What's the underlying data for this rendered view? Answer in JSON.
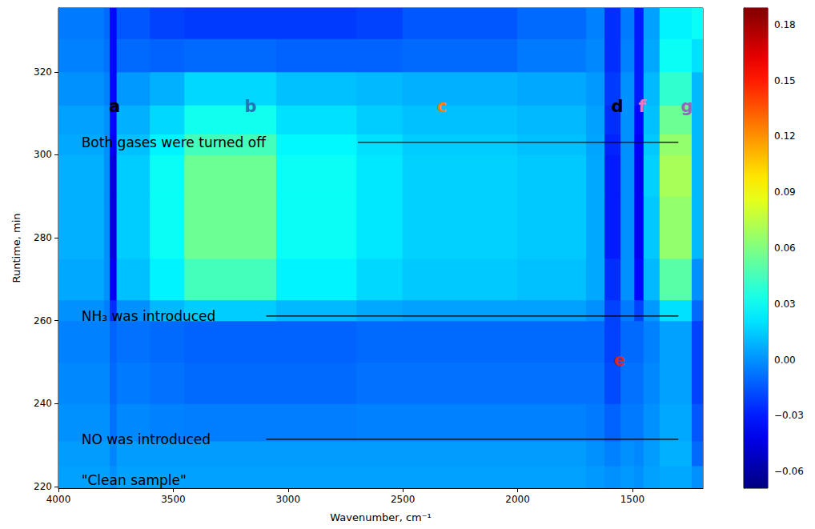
{
  "chart_data": {
    "type": "heatmap",
    "xlabel": "Wavenumber, cm⁻¹",
    "ylabel": "Runtime, min",
    "xlim": [
      4000,
      1193
    ],
    "xticks": [
      4000,
      3500,
      3000,
      2500,
      2000,
      1500
    ],
    "ylim": [
      219.6,
      335.4
    ],
    "yticks": [
      220,
      240,
      260,
      280,
      300,
      320
    ],
    "grid": false,
    "x_edges": [
      4000,
      3800,
      3775,
      3745,
      3600,
      3450,
      3050,
      2700,
      2500,
      2000,
      1700,
      1620,
      1550,
      1490,
      1450,
      1380,
      1240,
      1193
    ],
    "y_edges": [
      219.6,
      225,
      231,
      240,
      250,
      260,
      265,
      275,
      290,
      300,
      305,
      312,
      320,
      328,
      335.4
    ],
    "cells": [
      [
        0.004,
        0.004,
        0.0,
        0.004,
        0.004,
        0.004,
        0.004,
        0.004,
        0.004,
        0.004,
        0.002,
        0.0,
        0.002,
        0.0,
        0.004,
        0.006,
        0.0
      ],
      [
        0.003,
        0.003,
        -0.003,
        0.003,
        0.003,
        0.003,
        0.003,
        0.003,
        0.003,
        0.003,
        0.0,
        -0.004,
        0.0,
        -0.002,
        0.003,
        0.008,
        -0.01
      ],
      [
        0.0,
        0.0,
        -0.008,
        -0.002,
        -0.004,
        -0.005,
        -0.005,
        -0.004,
        -0.004,
        -0.004,
        -0.006,
        -0.012,
        -0.006,
        -0.006,
        0.0,
        0.006,
        -0.015
      ],
      [
        -0.002,
        -0.002,
        -0.01,
        -0.006,
        -0.008,
        -0.01,
        -0.01,
        -0.008,
        -0.008,
        -0.008,
        -0.008,
        -0.018,
        -0.008,
        -0.008,
        -0.002,
        0.004,
        -0.02
      ],
      [
        -0.004,
        -0.004,
        -0.012,
        -0.008,
        -0.01,
        -0.012,
        -0.012,
        -0.01,
        -0.01,
        -0.01,
        -0.01,
        -0.02,
        -0.01,
        -0.01,
        -0.004,
        0.004,
        -0.02
      ],
      [
        0.0,
        -0.005,
        -0.025,
        0.0,
        0.01,
        0.015,
        0.01,
        0.006,
        0.004,
        0.004,
        0.0,
        -0.02,
        -0.006,
        -0.02,
        0.002,
        0.02,
        -0.01
      ],
      [
        0.006,
        0.0,
        -0.04,
        0.012,
        0.025,
        0.045,
        0.025,
        0.018,
        0.014,
        0.012,
        0.006,
        -0.025,
        0.0,
        -0.035,
        0.01,
        0.05,
        0.0
      ],
      [
        0.008,
        0.0,
        -0.045,
        0.015,
        0.03,
        0.055,
        0.03,
        0.022,
        0.016,
        0.014,
        0.006,
        -0.03,
        0.0,
        -0.04,
        0.014,
        0.065,
        0.01
      ],
      [
        0.008,
        0.0,
        -0.045,
        0.015,
        0.03,
        0.055,
        0.03,
        0.022,
        0.016,
        0.014,
        0.006,
        -0.03,
        0.0,
        -0.04,
        0.016,
        0.07,
        0.01
      ],
      [
        0.006,
        0.0,
        -0.04,
        0.012,
        0.025,
        0.045,
        0.026,
        0.02,
        0.015,
        0.012,
        0.005,
        -0.028,
        0.0,
        -0.038,
        0.014,
        0.065,
        0.01
      ],
      [
        0.004,
        0.0,
        -0.035,
        0.008,
        0.018,
        0.032,
        0.02,
        0.015,
        0.012,
        0.01,
        0.004,
        -0.025,
        0.0,
        -0.035,
        0.012,
        0.055,
        0.01
      ],
      [
        0.0,
        -0.004,
        -0.035,
        0.002,
        0.008,
        0.018,
        0.012,
        0.01,
        0.008,
        0.006,
        0.002,
        -0.022,
        0.0,
        -0.03,
        0.01,
        0.04,
        0.01
      ],
      [
        -0.004,
        -0.008,
        -0.035,
        -0.01,
        -0.012,
        -0.01,
        -0.012,
        -0.012,
        -0.01,
        -0.006,
        -0.002,
        -0.025,
        -0.004,
        -0.03,
        0.006,
        0.03,
        0.02
      ],
      [
        -0.006,
        -0.01,
        -0.035,
        -0.015,
        -0.02,
        -0.022,
        -0.022,
        -0.02,
        -0.015,
        -0.01,
        -0.004,
        -0.025,
        -0.006,
        -0.03,
        0.004,
        0.025,
        0.03
      ]
    ],
    "colorbar": {
      "range": [
        -0.069,
        0.189
      ],
      "ticks": [
        {
          "value": -0.06,
          "label": "−0.06"
        },
        {
          "value": -0.03,
          "label": "−0.03"
        },
        {
          "value": 0,
          "label": "0.00"
        },
        0.03,
        0.06,
        0.09,
        0.12,
        0.15,
        0.18
      ]
    },
    "annotations": [
      {
        "text": "\"Clean sample\"",
        "x": 3900,
        "y": 221.6
      },
      {
        "text": "NO was introduced",
        "x": 3900,
        "y": 231.4,
        "line_x": [
          3095,
          1300
        ]
      },
      {
        "text": "NH₃ was introduced",
        "x": 3900,
        "y": 261.1,
        "line_x": [
          3095,
          1300
        ]
      },
      {
        "text": "Both gases were turned off",
        "x": 3900,
        "y": 303,
        "line_x": [
          2696,
          1300
        ]
      },
      {
        "text": "a",
        "x": 3756,
        "y": 311.7,
        "color": "#000000"
      },
      {
        "text": "b",
        "x": 3163,
        "y": 311.7,
        "color": "#1f77b4"
      },
      {
        "text": "c",
        "x": 2330,
        "y": 311.7,
        "color": "#ff7f0e"
      },
      {
        "text": "d",
        "x": 1566,
        "y": 311.7,
        "color": "#000000"
      },
      {
        "text": "f",
        "x": 1458,
        "y": 311.7,
        "color": "#e377c2"
      },
      {
        "text": "g",
        "x": 1263,
        "y": 311.7,
        "color": "#9467bd"
      },
      {
        "text": "e",
        "x": 1556,
        "y": 250.5,
        "color": "#d62728"
      }
    ]
  }
}
